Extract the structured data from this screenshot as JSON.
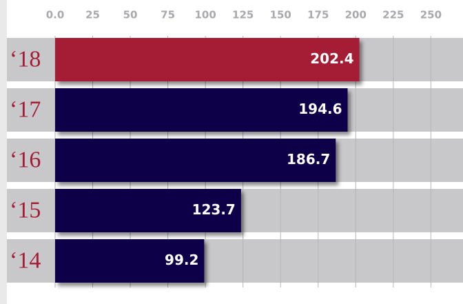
{
  "chart_data": {
    "type": "hbar",
    "categories": [
      "‘18",
      "‘17",
      "‘16",
      "‘15",
      "‘14"
    ],
    "values": [
      202.4,
      194.6,
      186.7,
      123.7,
      99.2
    ],
    "colors": [
      "#a51d35",
      "#0d0548",
      "#0d0548",
      "#0d0548",
      "#0d0548"
    ],
    "xlim": [
      0,
      270
    ],
    "xticks": [
      {
        "value": 0,
        "label": "0.0"
      },
      25,
      50,
      75,
      100,
      125,
      150,
      175,
      200,
      225,
      250
    ],
    "grid": true
  }
}
